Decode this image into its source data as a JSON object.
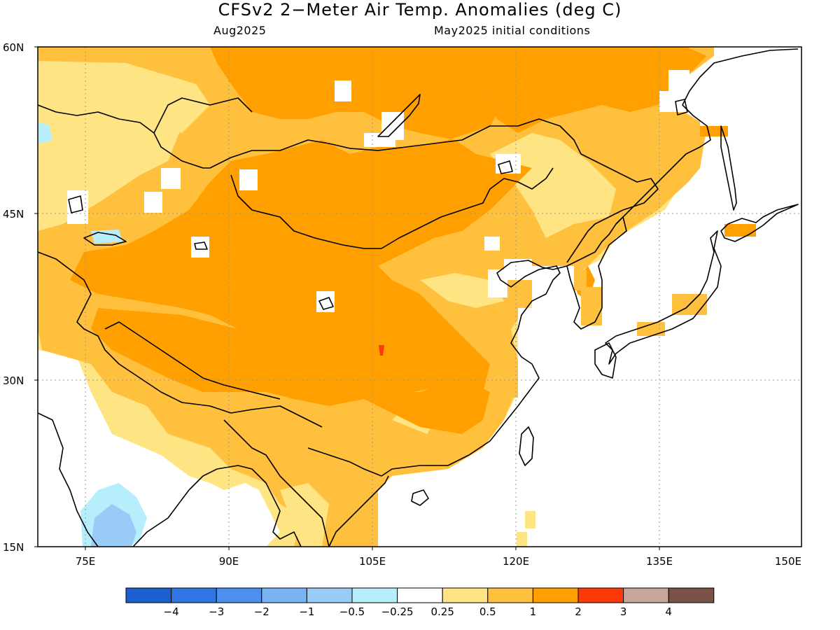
{
  "title": "CFSv2 2−Meter Air Temp. Anomalies (deg C)",
  "valid_month": "Aug2025",
  "initial_conditions": "May2025 initial conditions",
  "axes": {
    "lat_labels": [
      "60N",
      "45N",
      "30N",
      "15N"
    ],
    "lat_values": [
      60,
      45,
      30,
      15
    ],
    "lon_labels": [
      "75E",
      "90E",
      "105E",
      "120E",
      "135E",
      "150E"
    ],
    "lon_values": [
      75,
      90,
      105,
      120,
      135,
      150
    ],
    "lon_range": [
      70,
      150
    ],
    "lat_range": [
      15,
      60
    ]
  },
  "colorbar": {
    "labels": [
      "−4",
      "−3",
      "−2",
      "−1",
      "−0.5",
      "−0.25",
      "0.25",
      "0.5",
      "1",
      "2",
      "3",
      "4"
    ],
    "colors": [
      "#1c5fcf",
      "#2f76e3",
      "#4a90ec",
      "#78b3f2",
      "#98ccf6",
      "#b6eefc",
      "#ffffff",
      "#ffe483",
      "#ffc03d",
      "#ff9f00",
      "#ff3a0a",
      "#c9a59a",
      "#7a5248"
    ]
  },
  "field_colors": {
    "gt2": "#ff9f00",
    "1to2": "#ffc03d",
    "0.5to1": "#ffe483",
    "near_zero": "#ffffff",
    "neg_0.5": "#b6eefc",
    "neg_1": "#98ccf6",
    "gt3": "#ff3a0a"
  }
}
